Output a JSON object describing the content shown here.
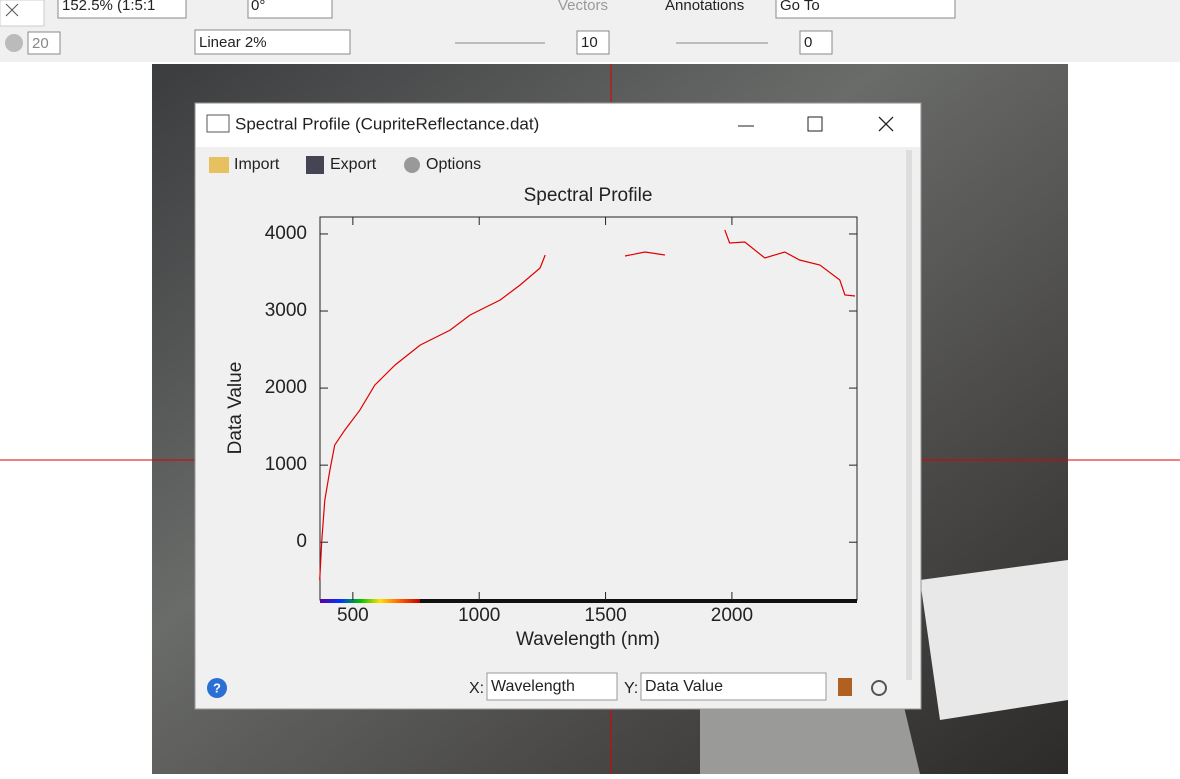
{
  "toolbar": {
    "zoom": "152.5% (1:5:1",
    "rotation": "0°",
    "vectors": "Vectors",
    "annotations": "Annotations",
    "goto": "Go To",
    "transparency": "20",
    "stretch": "Linear 2%",
    "sharpen": "10",
    "contrast": "0"
  },
  "dialog": {
    "title": "Spectral Profile (CupriteReflectance.dat)",
    "import": "Import",
    "export": "Export",
    "options": "Options",
    "x_label": "X:",
    "x_select": "Wavelength",
    "y_label": "Y:",
    "y_select": "Data Value"
  },
  "chart_data": {
    "type": "line",
    "title": "Spectral Profile",
    "x_label": "Wavelength (nm)",
    "y_label": "Data Value",
    "color": "#e00000",
    "x": [
      369,
      377,
      389,
      409,
      428,
      468,
      528,
      587,
      667,
      766,
      885,
      964,
      1083,
      1162,
      1241,
      1261,
      1420,
      1577,
      1656,
      1735,
      1850,
      1972,
      1991,
      2051,
      2130,
      2209,
      2268,
      2348,
      2427,
      2447,
      2487
    ],
    "values": [
      -494,
      26,
      545,
      935,
      1260,
      1455,
      1714,
      2039,
      2299,
      2558,
      2753,
      2948,
      3143,
      3338,
      3558,
      3727,
      null,
      3714,
      3766,
      3727,
      null,
      4052,
      3883,
      3896,
      3688,
      3766,
      3662,
      3597,
      3403,
      3208,
      3195
    ],
    "xlim": [
      370,
      2495
    ],
    "ylim": [
      -750,
      4220
    ],
    "xticks": [
      500,
      1000,
      1500,
      2000
    ],
    "yticks": [
      0,
      1000,
      2000,
      3000,
      4000
    ]
  }
}
